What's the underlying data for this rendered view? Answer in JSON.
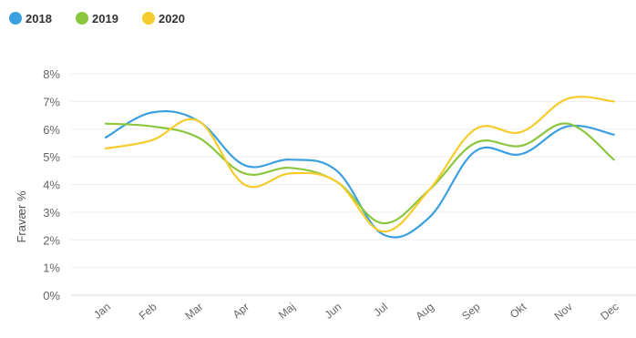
{
  "chart_data": {
    "type": "line",
    "ylabel": "Fravær %",
    "categories": [
      "Jan",
      "Feb",
      "Mar",
      "Apr",
      "Maj",
      "Jun",
      "Jul",
      "Aug",
      "Sep",
      "Okt",
      "Nov",
      "Dec"
    ],
    "ylim": [
      0,
      8
    ],
    "yticks": [
      "0%",
      "1%",
      "2%",
      "3%",
      "4%",
      "5%",
      "6%",
      "7%",
      "8%"
    ],
    "grid": "horizontal",
    "legend_position": "top-left",
    "series": [
      {
        "name": "2018",
        "color": "#3b9fe0",
        "values": [
          5.7,
          6.6,
          6.3,
          4.7,
          4.9,
          4.5,
          2.2,
          2.8,
          5.2,
          5.1,
          6.1,
          5.8
        ]
      },
      {
        "name": "2019",
        "color": "#8cc63f",
        "values": [
          6.2,
          6.1,
          5.7,
          4.4,
          4.6,
          4.1,
          2.6,
          3.8,
          5.5,
          5.4,
          6.2,
          4.9
        ]
      },
      {
        "name": "2020",
        "color": "#f5cc2b",
        "values": [
          5.3,
          5.6,
          6.3,
          4.0,
          4.4,
          4.1,
          2.3,
          3.8,
          6.0,
          5.9,
          7.1,
          7.0
        ]
      }
    ]
  }
}
